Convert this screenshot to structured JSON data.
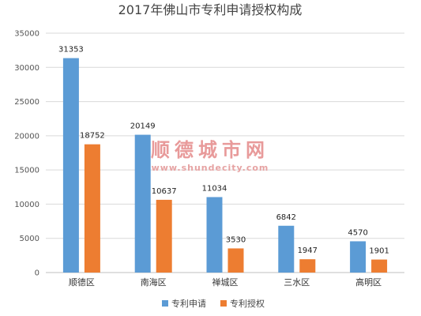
{
  "chart_data": {
    "type": "bar",
    "title": "2017年佛山市专利申请授权构成",
    "categories": [
      "顺德区",
      "南海区",
      "禅城区",
      "三水区",
      "高明区"
    ],
    "series": [
      {
        "name": "专利申请",
        "values": [
          31353,
          20149,
          11034,
          6842,
          4570
        ],
        "color": "#5b9bd5"
      },
      {
        "name": "专利授权",
        "values": [
          18752,
          10637,
          3530,
          1947,
          1901
        ],
        "color": "#ed7d31"
      }
    ],
    "yticks": [
      0,
      5000,
      10000,
      15000,
      20000,
      25000,
      30000,
      35000
    ],
    "ylim": [
      0,
      35000
    ],
    "legend_position": "bottom",
    "grid": true
  },
  "watermark": {
    "text": "顺德城市网",
    "url": "www.shundecity.com"
  }
}
